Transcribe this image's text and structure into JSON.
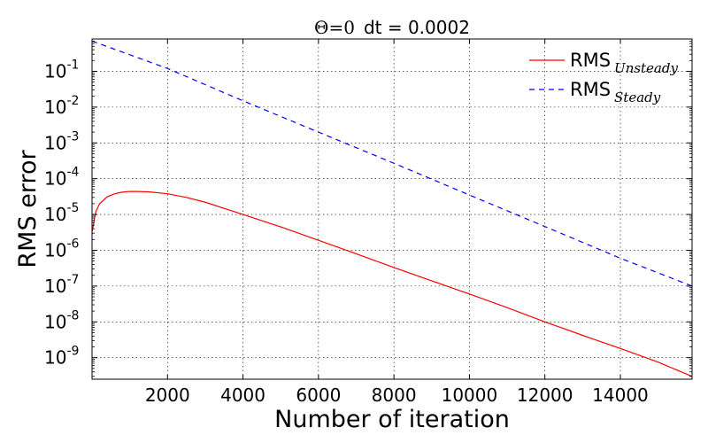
{
  "chart_data": {
    "type": "line",
    "title_math": "Θ=0",
    "title_text": "dt = 0.0002",
    "xlabel": "Number of iteration",
    "ylabel": "RMS error",
    "xlim": [
      0,
      15900
    ],
    "ylim": [
      2.5e-10,
      0.8
    ],
    "y_scale": "log",
    "grid": true,
    "legend_placement": "top-right",
    "x_ticks": [
      2000,
      4000,
      6000,
      8000,
      10000,
      12000,
      14000
    ],
    "x_tick_labels": [
      "2000",
      "4000",
      "6000",
      "8000",
      "10000",
      "12000",
      "14000"
    ],
    "y_ticks": [
      1e-09,
      1e-08,
      1e-07,
      1e-06,
      1e-05,
      0.0001,
      0.001,
      0.01,
      0.1
    ],
    "y_tick_exponents": [
      "-9",
      "-8",
      "-7",
      "-6",
      "-5",
      "-4",
      "-3",
      "-2",
      "-1"
    ],
    "y_tick_base": "10",
    "series": [
      {
        "name": "RMS",
        "subscript": "Unsteady",
        "color": "#ff0000",
        "dash": "solid",
        "x": [
          0,
          100,
          200,
          400,
          600,
          800,
          1000,
          1200,
          1500,
          2000,
          2500,
          3000,
          4000,
          5000,
          6000,
          7000,
          8000,
          9000,
          10000,
          11000,
          12000,
          13000,
          14000,
          15000,
          15900
        ],
        "y": [
          3.2e-06,
          1.2e-05,
          2e-05,
          3.1e-05,
          3.8e-05,
          4.2e-05,
          4.4e-05,
          4.4e-05,
          4.3e-05,
          3.8e-05,
          3e-05,
          2.2e-05,
          1e-05,
          4.5e-06,
          1.9e-06,
          8e-07,
          3.3e-07,
          1.4e-07,
          6e-08,
          2.5e-08,
          1e-08,
          4.2e-09,
          1.8e-09,
          7.5e-10,
          3e-10
        ]
      },
      {
        "name": "RMS",
        "subscript": "Steady",
        "color": "#0000ff",
        "dash": "dashed",
        "x": [
          0,
          2000,
          4000,
          6000,
          8000,
          10000,
          12000,
          14000,
          15900
        ],
        "y": [
          0.7,
          0.12,
          0.015,
          0.002,
          0.00027,
          3.5e-05,
          4.6e-06,
          6e-07,
          1e-07
        ]
      }
    ]
  }
}
